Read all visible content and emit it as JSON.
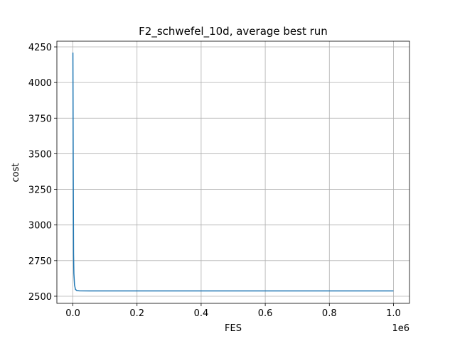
{
  "chart_data": {
    "type": "line",
    "title": "F2_schwefel_10d, average best run",
    "xlabel": "FES",
    "ylabel": "cost",
    "x_offset_text": "1e6",
    "xlim": [
      -0.05,
      1.05
    ],
    "ylim": [
      2450,
      4290
    ],
    "x_scale_factor": 1000000,
    "x_ticks": [
      0.0,
      0.2,
      0.4,
      0.6,
      0.8,
      1.0
    ],
    "x_tick_labels": [
      "0.0",
      "0.2",
      "0.4",
      "0.6",
      "0.8",
      "1.0"
    ],
    "y_ticks": [
      2500,
      2750,
      3000,
      3250,
      3500,
      3750,
      4000,
      4250
    ],
    "y_tick_labels": [
      "2500",
      "2750",
      "3000",
      "3250",
      "3500",
      "3750",
      "4000",
      "4250"
    ],
    "grid": true,
    "series": [
      {
        "color": "#1f77b4",
        "x": [
          0,
          0.001,
          0.002,
          0.003,
          0.005,
          0.008,
          0.012,
          0.02,
          0.05,
          0.1,
          0.2,
          0.3,
          0.4,
          0.5,
          0.6,
          0.7,
          0.8,
          0.9,
          1.0
        ],
        "y": [
          4210,
          3400,
          2800,
          2660,
          2580,
          2548,
          2540,
          2538,
          2537,
          2537,
          2537,
          2537,
          2537,
          2537,
          2537,
          2537,
          2537,
          2537,
          2537
        ]
      }
    ]
  }
}
